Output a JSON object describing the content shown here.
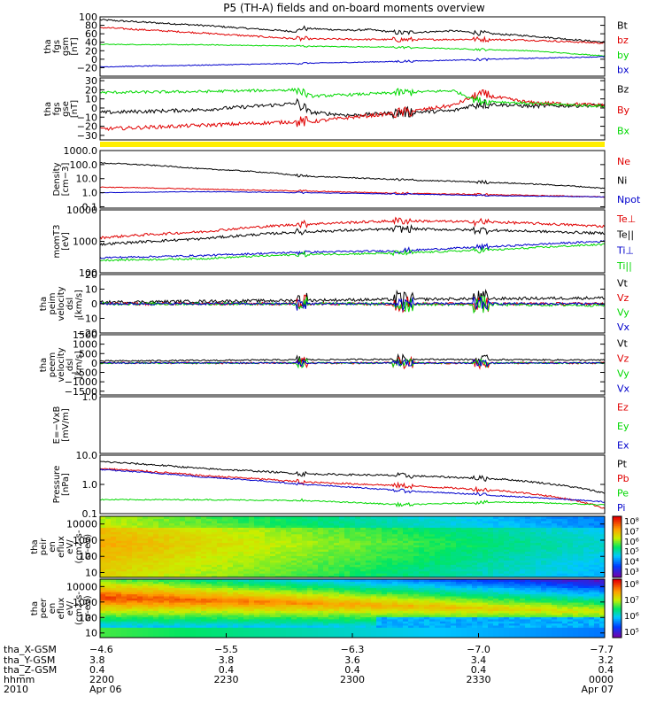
{
  "title": "P5 (TH-A) fields and on-board moments overview",
  "colors": {
    "black": "#000000",
    "red": "#e00000",
    "green": "#00d800",
    "blue": "#0000cc",
    "yellow": "#ffee00"
  },
  "chart_data": [
    {
      "type": "line",
      "panel": "fgs-gsm",
      "ylabel_lines": [
        "tha",
        "fgs",
        "gsm",
        "[nT]"
      ],
      "ylim": [
        -40,
        100
      ],
      "yticks": [
        -20,
        0,
        20,
        40,
        60,
        80,
        100
      ],
      "tick_labels": [
        "−20",
        "0",
        "20",
        "40",
        "60",
        "80",
        "100"
      ],
      "series": [
        {
          "name": "Bt",
          "color": "#000000",
          "x": [
            0,
            0.2,
            0.39,
            0.4,
            0.5,
            0.53,
            0.6,
            0.7,
            0.75,
            0.85,
            1.0
          ],
          "y": [
            93,
            80,
            65,
            73,
            68,
            70,
            62,
            67,
            62,
            55,
            40
          ],
          "noise": 2
        },
        {
          "name": "bz",
          "color": "#e00000",
          "x": [
            0,
            0.2,
            0.39,
            0.5,
            0.6,
            0.75,
            0.85,
            1.0
          ],
          "y": [
            75,
            62,
            48,
            47,
            46,
            47,
            45,
            38
          ],
          "noise": 2
        },
        {
          "name": "by",
          "color": "#00d800",
          "x": [
            0,
            0.2,
            0.39,
            0.6,
            0.85,
            1.0
          ],
          "y": [
            35,
            34,
            31,
            28,
            20,
            8
          ],
          "noise": 1
        },
        {
          "name": "bx",
          "color": "#0000cc",
          "x": [
            0,
            0.2,
            0.39,
            0.6,
            0.85,
            1.0
          ],
          "y": [
            -18,
            -14,
            -10,
            -5,
            2,
            6
          ],
          "noise": 1
        }
      ]
    },
    {
      "type": "line",
      "panel": "fgs-gse",
      "ylabel_lines": [
        "tha",
        "fgs",
        "gse",
        "[nT]"
      ],
      "ylim": [
        -35,
        33
      ],
      "yticks": [
        -30,
        -20,
        -10,
        0,
        10,
        20,
        30
      ],
      "tick_labels": [
        "−30",
        "−20",
        "−10",
        "0",
        "10",
        "20",
        "30"
      ],
      "series": [
        {
          "name": "Bz",
          "color": "#000000",
          "x": [
            0,
            0.2,
            0.39,
            0.42,
            0.5,
            0.6,
            0.7,
            0.75,
            0.85,
            1.0
          ],
          "y": [
            -5,
            -2,
            5,
            -5,
            -8,
            -5,
            -3,
            5,
            2,
            3
          ],
          "noise": 2
        },
        {
          "name": "By",
          "color": "#e00000",
          "x": [
            0,
            0.2,
            0.39,
            0.42,
            0.5,
            0.6,
            0.7,
            0.75,
            0.85,
            1.0
          ],
          "y": [
            -23,
            -19,
            -15,
            -15,
            -10,
            -5,
            3,
            15,
            6,
            3
          ],
          "noise": 2
        },
        {
          "name": "Bx",
          "color": "#00d800",
          "x": [
            0,
            0.2,
            0.39,
            0.42,
            0.6,
            0.7,
            0.75,
            0.85,
            1.0
          ],
          "y": [
            17,
            18,
            20,
            13,
            17,
            19,
            8,
            5,
            2
          ],
          "noise": 1.5
        }
      ]
    },
    {
      "type": "line",
      "panel": "density",
      "yscale": "log",
      "ylabel_lines": [
        "Density",
        "[cm−3]"
      ],
      "ylim": [
        0.08,
        1000
      ],
      "yticks": [
        0.1,
        1.0,
        10.0,
        100.0,
        1000.0
      ],
      "tick_labels": [
        "0.1",
        "1.0",
        "10.0",
        "100.0",
        "1000.0"
      ],
      "series": [
        {
          "name": "Ne",
          "color": "#e00000",
          "x": [
            0,
            0.2,
            0.4,
            0.6,
            0.8,
            1.0
          ],
          "y": [
            2.5,
            1.8,
            1.3,
            0.9,
            0.7,
            0.5
          ],
          "noise": 0.03
        },
        {
          "name": "Ni",
          "color": "#000000",
          "x": [
            0,
            0.2,
            0.4,
            0.6,
            0.8,
            1.0
          ],
          "y": [
            130,
            50,
            15,
            8,
            5,
            2
          ],
          "noise": 0.04
        },
        {
          "name": "Npot",
          "color": "#0000cc",
          "x": [
            0,
            0.2,
            0.4,
            0.6,
            0.8,
            1.0
          ],
          "y": [
            1.0,
            1.2,
            1.0,
            0.8,
            0.6,
            0.5
          ],
          "noise": 0.02
        }
      ]
    },
    {
      "type": "line",
      "panel": "mom-temperature",
      "yscale": "log",
      "ylabel_lines": [
        "momT3",
        "[eV]"
      ],
      "ylim": [
        100,
        10000
      ],
      "yticks": [
        100,
        1000,
        10000
      ],
      "tick_labels": [
        "100",
        "1000",
        "10000"
      ],
      "series": [
        {
          "name": "Te⊥",
          "color": "#e00000",
          "x": [
            0,
            0.2,
            0.4,
            0.6,
            0.8,
            1.0
          ],
          "y": [
            1300,
            2000,
            3500,
            4500,
            4000,
            3000
          ],
          "noise": 0.04
        },
        {
          "name": "Te||",
          "color": "#000000",
          "x": [
            0,
            0.2,
            0.4,
            0.6,
            0.8,
            1.0
          ],
          "y": [
            800,
            1200,
            2000,
            2500,
            2200,
            1800
          ],
          "noise": 0.04
        },
        {
          "name": "Ti⊥",
          "color": "#0000cc",
          "x": [
            0,
            0.2,
            0.4,
            0.6,
            0.8,
            1.0
          ],
          "y": [
            300,
            350,
            450,
            500,
            700,
            1000
          ],
          "noise": 0.03
        },
        {
          "name": "Ti||",
          "color": "#00d800",
          "x": [
            0,
            0.2,
            0.4,
            0.6,
            0.8,
            1.0
          ],
          "y": [
            250,
            280,
            380,
            420,
            550,
            800
          ],
          "noise": 0.03
        }
      ]
    },
    {
      "type": "line",
      "panel": "peim-velocity",
      "ylabel_lines": [
        "tha",
        "peim",
        "velocity",
        "dsl",
        "[km/s]"
      ],
      "ylim": [
        -20,
        20
      ],
      "yticks": [
        -20,
        -10,
        0,
        10,
        20
      ],
      "tick_labels": [
        "−20",
        "−10",
        "0",
        "10",
        "20"
      ],
      "series": [
        {
          "name": "Vt",
          "color": "#000000",
          "x": [
            0,
            0.3,
            0.6,
            1.0
          ],
          "y": [
            1,
            2,
            3,
            4
          ],
          "noise": 1
        },
        {
          "name": "Vz",
          "color": "#e00000",
          "x": [
            0,
            0.5,
            1.0
          ],
          "y": [
            0,
            0,
            0
          ],
          "noise": 1
        },
        {
          "name": "Vy",
          "color": "#00d800",
          "x": [
            0,
            0.5,
            1.0
          ],
          "y": [
            0,
            0,
            -1
          ],
          "noise": 1
        },
        {
          "name": "Vx",
          "color": "#0000cc",
          "x": [
            0,
            0.5,
            1.0
          ],
          "y": [
            0,
            0,
            0
          ],
          "noise": 0.8
        }
      ]
    },
    {
      "type": "line",
      "panel": "peem-velocity",
      "ylabel_lines": [
        "tha",
        "peem",
        "velocity",
        "dsl",
        "[km/s]"
      ],
      "ylim": [
        -1700,
        1500
      ],
      "yticks": [
        -1500,
        -1000,
        -500,
        0,
        500,
        1000,
        1500
      ],
      "tick_labels": [
        "−1500",
        "−1000",
        "−500",
        "0",
        "500",
        "1000",
        "1500"
      ],
      "series": [
        {
          "name": "Vt",
          "color": "#000000",
          "x": [
            0,
            0.3,
            0.6,
            1.0
          ],
          "y": [
            100,
            150,
            200,
            150
          ],
          "noise": 40
        },
        {
          "name": "Vz",
          "color": "#e00000",
          "x": [
            0,
            0.5,
            1.0
          ],
          "y": [
            0,
            0,
            0
          ],
          "noise": 50
        },
        {
          "name": "Vy",
          "color": "#00d800",
          "x": [
            0,
            0.5,
            1.0
          ],
          "y": [
            0,
            0,
            0
          ],
          "noise": 40
        },
        {
          "name": "Vx",
          "color": "#0000cc",
          "x": [
            0,
            0.5,
            1.0
          ],
          "y": [
            0,
            0,
            0
          ],
          "noise": 30
        }
      ]
    },
    {
      "type": "line",
      "panel": "e-vxb",
      "ylabel_lines": [
        "E=−VxB",
        "[mV/m]"
      ],
      "ylim": [
        -1.0,
        1.0
      ],
      "yticks": [
        1.0
      ],
      "tick_labels": [
        "1.0"
      ],
      "series": [
        {
          "name": "Ez",
          "color": "#e00000",
          "x": [],
          "y": []
        },
        {
          "name": "Ey",
          "color": "#00d800",
          "x": [],
          "y": []
        },
        {
          "name": "Ex",
          "color": "#0000cc",
          "x": [],
          "y": []
        }
      ]
    },
    {
      "type": "line",
      "panel": "pressure",
      "yscale": "log",
      "ylabel_lines": [
        "Pressure",
        "[nPa]"
      ],
      "ylim": [
        0.1,
        10
      ],
      "yticks": [
        0.1,
        1.0,
        10.0
      ],
      "tick_labels": [
        "0.1",
        "1.0",
        "10.0"
      ],
      "series": [
        {
          "name": "Pt",
          "color": "#000000",
          "x": [
            0,
            0.2,
            0.4,
            0.6,
            0.8,
            1.0
          ],
          "y": [
            6,
            3.5,
            2.3,
            2.0,
            1.5,
            0.5
          ],
          "noise": 0.03
        },
        {
          "name": "Pb",
          "color": "#e00000",
          "x": [
            0,
            0.2,
            0.4,
            0.6,
            0.8,
            1.0
          ],
          "y": [
            3.5,
            2.0,
            1.2,
            0.9,
            0.6,
            0.15
          ],
          "noise": 0.03
        },
        {
          "name": "Pe",
          "color": "#00d800",
          "x": [
            0,
            0.2,
            0.4,
            0.6,
            0.8,
            1.0
          ],
          "y": [
            0.3,
            0.3,
            0.28,
            0.2,
            0.25,
            0.2
          ],
          "noise": 0.02
        },
        {
          "name": "Pi",
          "color": "#0000cc",
          "x": [
            0,
            0.2,
            0.4,
            0.6,
            0.8,
            1.0
          ],
          "y": [
            3.2,
            1.8,
            1.0,
            0.6,
            0.4,
            0.25
          ],
          "noise": 0.02
        }
      ]
    },
    {
      "type": "heatmap",
      "panel": "peir-en-eflux",
      "yscale": "log",
      "ylabel_lines": [
        "tha",
        "peir",
        "en",
        "eflux",
        "eV/",
        "(cm2-s-",
        "sr-eV)"
      ],
      "ylim": [
        5,
        30000
      ],
      "yticks": [
        10,
        100,
        1000,
        10000
      ],
      "tick_labels": [
        "10",
        "100",
        "1000",
        "10000"
      ],
      "colorbar_labels": [
        "10³",
        "10⁴",
        "10⁵",
        "10⁶",
        "10⁷",
        "10⁸"
      ]
    },
    {
      "type": "heatmap",
      "panel": "peer-en-eflux",
      "yscale": "log",
      "ylabel_lines": [
        "tha",
        "peer",
        "en",
        "eflux",
        "eV/",
        "(cm2-s-",
        "sr-eV)"
      ],
      "ylim": [
        5,
        30000
      ],
      "yticks": [
        10,
        100,
        1000,
        10000
      ],
      "tick_labels": [
        "10",
        "100",
        "1000",
        "10000"
      ],
      "colorbar_labels": [
        "10⁵",
        "10⁶",
        "10⁷",
        "10⁸"
      ]
    }
  ],
  "x_axis": {
    "row_labels": [
      "tha_X-GSM",
      "tha_Y-GSM",
      "tha_Z-GSM",
      "hhmm",
      "2010"
    ],
    "ticks": [
      {
        "pos": 0.0,
        "values": [
          "−4.6",
          "3.8",
          "0.4",
          "2200",
          "Apr 06"
        ]
      },
      {
        "pos": 0.25,
        "values": [
          "−5.5",
          "3.8",
          "0.4",
          "2230",
          ""
        ]
      },
      {
        "pos": 0.5,
        "values": [
          "−6.3",
          "3.6",
          "0.4",
          "2300",
          ""
        ]
      },
      {
        "pos": 0.75,
        "values": [
          "−7.0",
          "3.4",
          "0.4",
          "2330",
          ""
        ]
      },
      {
        "pos": 1.0,
        "values": [
          "−7.7",
          "3.2",
          "0.4",
          "0000",
          "Apr 07"
        ]
      }
    ]
  }
}
